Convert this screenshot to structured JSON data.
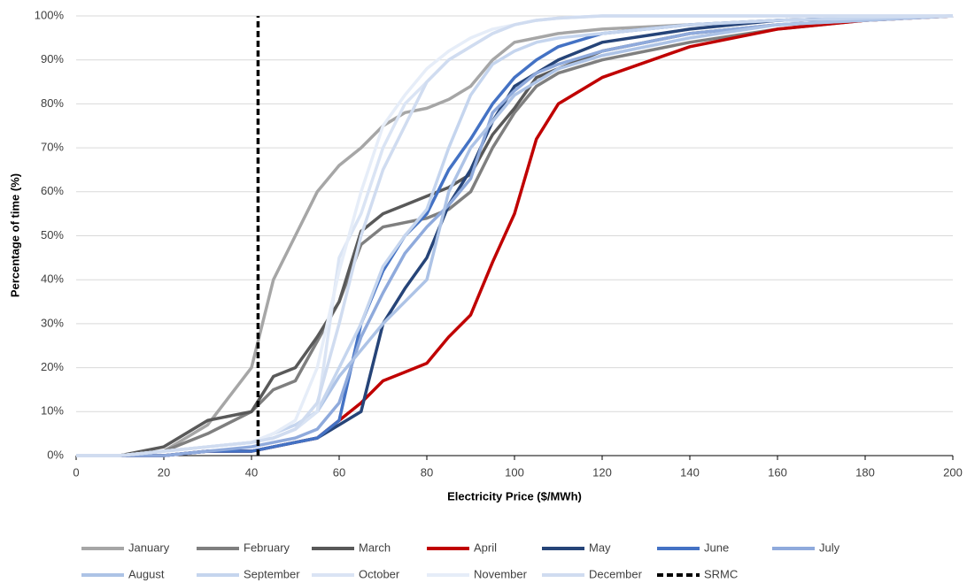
{
  "chart_data": {
    "type": "line",
    "x_label": "Electricity Price ($/MWh)",
    "y_label": "Percentage of time (%)",
    "xlim": [
      0,
      200
    ],
    "xticks": [
      0,
      20,
      40,
      60,
      80,
      100,
      120,
      140,
      160,
      180,
      200
    ],
    "ylim": [
      0,
      100
    ],
    "yticks": [
      {
        "value": 0,
        "label": "0%"
      },
      {
        "value": 10,
        "label": "10%"
      },
      {
        "value": 20,
        "label": "20%"
      },
      {
        "value": 30,
        "label": "30%"
      },
      {
        "value": 40,
        "label": "40%"
      },
      {
        "value": 50,
        "label": "50%"
      },
      {
        "value": 60,
        "label": "60%"
      },
      {
        "value": 70,
        "label": "70%"
      },
      {
        "value": 80,
        "label": "80%"
      },
      {
        "value": 90,
        "label": "90%"
      },
      {
        "value": 100,
        "label": "100%"
      }
    ],
    "grid": true,
    "legend": "bottom",
    "x": [
      0,
      10,
      20,
      30,
      40,
      45,
      50,
      55,
      60,
      65,
      70,
      75,
      80,
      85,
      90,
      95,
      100,
      105,
      110,
      120,
      140,
      160,
      180,
      200
    ],
    "series": [
      {
        "name": "January",
        "color": "#a6a6a6",
        "values": [
          0,
          0,
          1,
          7,
          20,
          40,
          50,
          60,
          66,
          70,
          75,
          78,
          79,
          81,
          84,
          90,
          94,
          95,
          96,
          97,
          98,
          99,
          99.5,
          100
        ]
      },
      {
        "name": "February",
        "color": "#7f7f7f",
        "values": [
          0,
          0,
          1,
          5,
          10,
          15,
          17,
          26,
          35,
          48,
          52,
          53,
          54,
          56,
          60,
          70,
          78,
          84,
          87,
          90,
          94,
          97,
          99,
          100
        ]
      },
      {
        "name": "March",
        "color": "#595959",
        "values": [
          0,
          0,
          2,
          8,
          10,
          18,
          20,
          27,
          35,
          51,
          55,
          57,
          59,
          61,
          64,
          73,
          79,
          86,
          88,
          92,
          96,
          98,
          99,
          100
        ]
      },
      {
        "name": "April",
        "color": "#c00000",
        "values": [
          0,
          0,
          0,
          1,
          1,
          2,
          3,
          4,
          8,
          12,
          17,
          19,
          21,
          27,
          32,
          44,
          55,
          72,
          80,
          86,
          93,
          97,
          99,
          100
        ]
      },
      {
        "name": "May",
        "color": "#264478",
        "values": [
          0,
          0,
          0,
          1,
          1,
          2,
          3,
          4,
          7,
          10,
          30,
          38,
          45,
          57,
          65,
          76,
          84,
          87,
          90,
          94,
          97,
          99,
          99.5,
          100
        ]
      },
      {
        "name": "June",
        "color": "#4472c4",
        "values": [
          0,
          0,
          0,
          1,
          1,
          2,
          3,
          4,
          8,
          30,
          42,
          50,
          55,
          65,
          72,
          80,
          86,
          90,
          93,
          96,
          98,
          99,
          99.5,
          100
        ]
      },
      {
        "name": "July",
        "color": "#8faadc",
        "values": [
          0,
          0,
          0,
          1,
          2,
          3,
          4,
          6,
          12,
          27,
          37,
          46,
          52,
          57,
          63,
          78,
          83,
          87,
          89,
          92,
          96,
          98,
          99,
          100
        ]
      },
      {
        "name": "August",
        "color": "#adc3e6",
        "values": [
          0,
          0,
          1,
          2,
          3,
          4,
          6,
          10,
          18,
          24,
          30,
          35,
          40,
          60,
          70,
          76,
          82,
          85,
          88,
          91,
          95,
          98,
          99,
          100
        ]
      },
      {
        "name": "September",
        "color": "#c5d5ee",
        "values": [
          0,
          0,
          1,
          2,
          3,
          5,
          7,
          10,
          20,
          30,
          43,
          50,
          56,
          70,
          82,
          89,
          92,
          94,
          95,
          96,
          98,
          99,
          99.5,
          100
        ]
      },
      {
        "name": "October",
        "color": "#dae4f4",
        "values": [
          0,
          0,
          1,
          2,
          3,
          4,
          6,
          10,
          45,
          55,
          70,
          80,
          85,
          90,
          93,
          96,
          98,
          99,
          99.5,
          100,
          100,
          100,
          100,
          100
        ]
      },
      {
        "name": "November",
        "color": "#e6edf8",
        "values": [
          0,
          0,
          1,
          2,
          3,
          5,
          8,
          20,
          42,
          60,
          75,
          82,
          88,
          92,
          95,
          97,
          98,
          99,
          99.5,
          100,
          100,
          100,
          100,
          100
        ]
      },
      {
        "name": "December",
        "color": "#d0dcf0",
        "values": [
          0,
          0,
          1,
          2,
          3,
          4,
          6,
          12,
          30,
          50,
          65,
          75,
          85,
          90,
          93,
          96,
          98,
          99,
          99.5,
          100,
          100,
          100,
          100,
          100
        ]
      },
      {
        "name": "SRMC",
        "color": "#000000",
        "dash": true,
        "x": [
          41.5,
          41.5
        ],
        "values": [
          0,
          100
        ]
      }
    ]
  }
}
